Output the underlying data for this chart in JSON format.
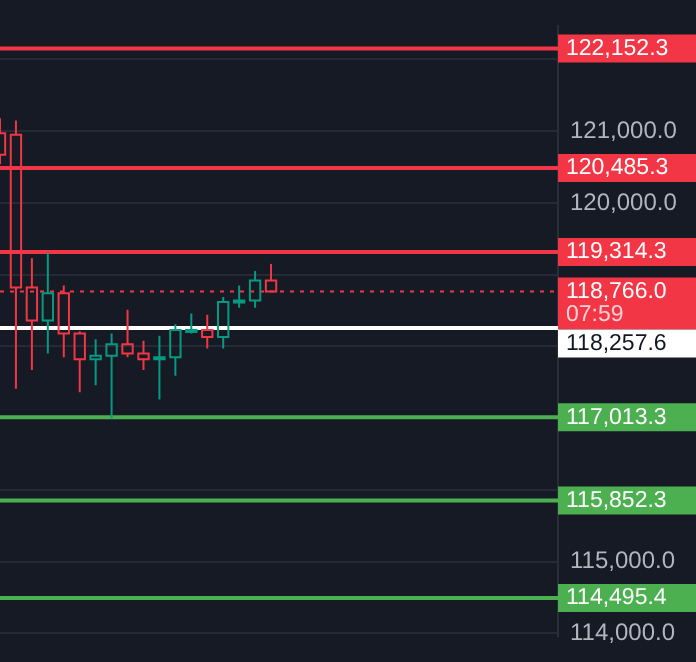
{
  "chart_data": {
    "type": "candlestick",
    "categories": [
      null,
      null,
      null,
      null,
      null,
      null,
      null,
      null,
      null,
      null,
      null,
      null,
      null,
      null,
      null,
      null,
      null,
      null,
      null,
      null,
      null,
      null,
      null,
      null,
      null,
      null,
      null,
      null,
      null,
      null,
      null,
      null,
      null,
      null,
      null,
      null
    ],
    "ohlc": [
      [
        120970,
        121180,
        120540,
        120670
      ],
      [
        120950,
        121150,
        117410,
        118820
      ],
      [
        118820,
        119230,
        117670,
        118360
      ],
      [
        118360,
        119310,
        117900,
        118740
      ],
      [
        118740,
        118850,
        117850,
        118180
      ],
      [
        118180,
        118210,
        117360,
        117820
      ],
      [
        117820,
        118100,
        117460,
        117870
      ],
      [
        117870,
        118180,
        117000,
        118030
      ],
      [
        118030,
        118510,
        117850,
        117900
      ],
      [
        117900,
        118080,
        117670,
        117820
      ],
      [
        117820,
        118150,
        117260,
        117850
      ],
      [
        117850,
        118310,
        117590,
        118230
      ],
      [
        118210,
        118460,
        118180,
        118230
      ],
      [
        118230,
        118440,
        117970,
        118130
      ],
      [
        118130,
        118690,
        117970,
        118620
      ],
      [
        118620,
        118850,
        118540,
        118640
      ],
      [
        118640,
        119050,
        118540,
        118920
      ],
      [
        118920,
        119150,
        118766,
        118766
      ],
      null,
      null,
      null,
      null,
      null,
      null,
      null,
      null,
      null,
      null,
      null,
      null,
      null,
      null,
      null,
      null,
      null,
      null
    ],
    "ylim": [
      113970,
      122460
    ],
    "yticks": [
      {
        "value": 114000,
        "label": "114,000.0"
      },
      {
        "value": 115000,
        "label": "115,000.0"
      },
      {
        "value": 116000,
        "label": null
      },
      {
        "value": 117000,
        "label": null
      },
      {
        "value": 118000,
        "label": null
      },
      {
        "value": 119000,
        "label": null
      },
      {
        "value": 120000,
        "label": "120,000.0"
      },
      {
        "value": 121000,
        "label": "121,000.0"
      },
      {
        "value": 122000,
        "label": null
      }
    ],
    "grid": "y",
    "ref_lines": [
      {
        "axis": "y",
        "value": 122152.3,
        "label": "122,152.3",
        "color": "#f23645",
        "line_style": "solid"
      },
      {
        "axis": "y",
        "value": 120485.3,
        "label": "120,485.3",
        "color": "#f23645",
        "line_style": "solid"
      },
      {
        "axis": "y",
        "value": 119314.3,
        "label": "119,314.3",
        "color": "#f23645",
        "line_style": "solid"
      },
      {
        "axis": "y",
        "value": 118766.0,
        "label": "118,766.0",
        "color": "#f23645",
        "line_style": "dotted"
      },
      {
        "axis": "y",
        "value": 118257.6,
        "label": "118,257.6",
        "color": "#ffffff",
        "line_style": "solid"
      },
      {
        "axis": "y",
        "value": 117013.3,
        "label": "117,013.3",
        "color": "#4caf50",
        "line_style": "solid"
      },
      {
        "axis": "y",
        "value": 115852.3,
        "label": "115,852.3",
        "color": "#4caf50",
        "line_style": "solid"
      },
      {
        "axis": "y",
        "value": 114495.4,
        "label": "114,495.4",
        "color": "#4caf50",
        "line_style": "solid"
      }
    ],
    "annotations": [
      "07:59"
    ]
  }
}
